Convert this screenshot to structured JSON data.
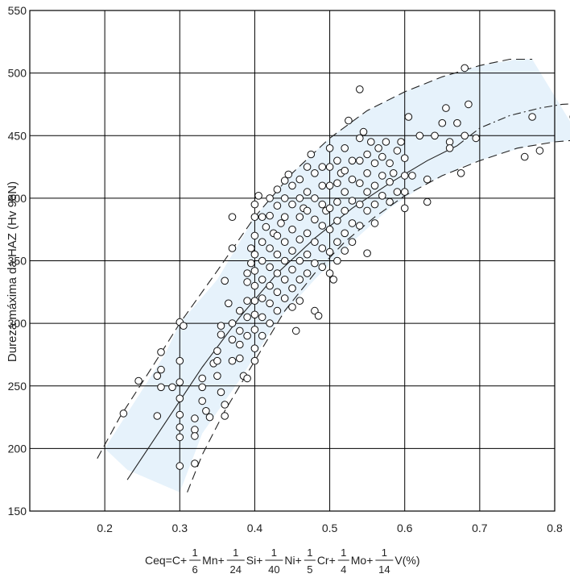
{
  "chart_data": {
    "type": "scatter",
    "ylabel": "Dureza máxima da HAZ (Hv 98N)",
    "xlabel_formula": {
      "prefix": "Ceq=C+",
      "terms": [
        {
          "num": "1",
          "den": "6",
          "elem": "Mn+"
        },
        {
          "num": "1",
          "den": "24",
          "elem": "Si+"
        },
        {
          "num": "1",
          "den": "40",
          "elem": "Ni+"
        },
        {
          "num": "1",
          "den": "5",
          "elem": "Cr+"
        },
        {
          "num": "1",
          "den": "4",
          "elem": "Mo+"
        },
        {
          "num": "1",
          "den": "14",
          "elem": "V(%)"
        }
      ]
    },
    "xlim": [
      0.1,
      0.8
    ],
    "ylim": [
      150,
      550
    ],
    "xticks": [
      0.2,
      0.3,
      0.4,
      0.5,
      0.6,
      0.7,
      0.8
    ],
    "xtick_labels": [
      "0.2",
      "0.3",
      "0.4",
      "0.5",
      "0.6",
      "0.7",
      "0.8"
    ],
    "yticks": [
      150,
      200,
      250,
      300,
      350,
      400,
      450,
      500,
      550
    ],
    "ytick_labels": [
      "150",
      "200",
      "250",
      "300",
      "350",
      "400",
      "450",
      "500",
      "550"
    ],
    "grid": true,
    "colors": {
      "band": "#e6f2fb",
      "line": "#222222",
      "grid": "#000000"
    },
    "band": {
      "upper": [
        [
          0.3,
          300
        ],
        [
          0.35,
          335
        ],
        [
          0.4,
          385
        ],
        [
          0.45,
          420
        ],
        [
          0.5,
          448
        ],
        [
          0.55,
          470
        ],
        [
          0.6,
          485
        ],
        [
          0.65,
          497
        ],
        [
          0.7,
          506
        ],
        [
          0.75,
          511
        ],
        [
          0.77,
          511
        ]
      ],
      "lower": [
        [
          0.33,
          212
        ],
        [
          0.38,
          255
        ],
        [
          0.43,
          302
        ],
        [
          0.48,
          335
        ],
        [
          0.53,
          365
        ],
        [
          0.58,
          392
        ],
        [
          0.63,
          412
        ],
        [
          0.68,
          426
        ],
        [
          0.73,
          436
        ],
        [
          0.78,
          444
        ],
        [
          0.835,
          447
        ]
      ],
      "bottom_left": [
        [
          0.3,
          165
        ],
        [
          0.23,
          183
        ],
        [
          0.2,
          200
        ],
        [
          0.28,
          275
        ],
        [
          0.3,
          300
        ]
      ]
    },
    "envelope_upper": [
      [
        0.19,
        192
      ],
      [
        0.22,
        225
      ],
      [
        0.26,
        262
      ],
      [
        0.3,
        300
      ],
      [
        0.35,
        342
      ],
      [
        0.4,
        385
      ],
      [
        0.45,
        420
      ],
      [
        0.5,
        448
      ],
      [
        0.55,
        470
      ],
      [
        0.6,
        485
      ],
      [
        0.65,
        497
      ],
      [
        0.7,
        506
      ],
      [
        0.74,
        511
      ],
      [
        0.77,
        511
      ]
    ],
    "envelope_lower": [
      [
        0.31,
        165
      ],
      [
        0.33,
        195
      ],
      [
        0.36,
        230
      ],
      [
        0.4,
        270
      ],
      [
        0.44,
        310
      ],
      [
        0.48,
        340
      ],
      [
        0.52,
        365
      ],
      [
        0.56,
        385
      ],
      [
        0.6,
        402
      ],
      [
        0.65,
        418
      ],
      [
        0.7,
        430
      ],
      [
        0.75,
        440
      ],
      [
        0.8,
        445
      ],
      [
        0.84,
        447
      ]
    ],
    "center_solid": [
      [
        0.23,
        175
      ],
      [
        0.28,
        220
      ],
      [
        0.33,
        265
      ],
      [
        0.38,
        305
      ],
      [
        0.43,
        340
      ],
      [
        0.48,
        368
      ],
      [
        0.53,
        392
      ],
      [
        0.58,
        412
      ],
      [
        0.63,
        430
      ],
      [
        0.67,
        442
      ]
    ],
    "center_dashdot": [
      [
        0.67,
        442
      ],
      [
        0.7,
        456
      ],
      [
        0.74,
        466
      ],
      [
        0.78,
        472
      ],
      [
        0.81,
        475
      ],
      [
        0.845,
        476
      ]
    ],
    "points": [
      [
        0.225,
        228
      ],
      [
        0.245,
        254
      ],
      [
        0.27,
        226
      ],
      [
        0.27,
        258
      ],
      [
        0.275,
        263
      ],
      [
        0.275,
        277
      ],
      [
        0.275,
        249
      ],
      [
        0.29,
        249
      ],
      [
        0.3,
        301
      ],
      [
        0.305,
        298
      ],
      [
        0.3,
        270
      ],
      [
        0.3,
        253
      ],
      [
        0.3,
        240
      ],
      [
        0.3,
        227
      ],
      [
        0.3,
        217
      ],
      [
        0.3,
        209
      ],
      [
        0.3,
        186
      ],
      [
        0.32,
        224
      ],
      [
        0.32,
        215
      ],
      [
        0.32,
        210
      ],
      [
        0.32,
        188
      ],
      [
        0.33,
        238
      ],
      [
        0.33,
        249
      ],
      [
        0.33,
        256
      ],
      [
        0.335,
        230
      ],
      [
        0.34,
        225
      ],
      [
        0.345,
        268
      ],
      [
        0.35,
        278
      ],
      [
        0.35,
        270
      ],
      [
        0.35,
        258
      ],
      [
        0.355,
        291
      ],
      [
        0.355,
        298
      ],
      [
        0.355,
        245
      ],
      [
        0.36,
        235
      ],
      [
        0.36,
        226
      ],
      [
        0.365,
        316
      ],
      [
        0.36,
        334
      ],
      [
        0.37,
        360
      ],
      [
        0.37,
        385
      ],
      [
        0.37,
        300
      ],
      [
        0.37,
        287
      ],
      [
        0.37,
        270
      ],
      [
        0.38,
        310
      ],
      [
        0.38,
        294
      ],
      [
        0.38,
        283
      ],
      [
        0.38,
        272
      ],
      [
        0.385,
        258
      ],
      [
        0.39,
        340
      ],
      [
        0.39,
        333
      ],
      [
        0.39,
        318
      ],
      [
        0.39,
        305
      ],
      [
        0.39,
        290
      ],
      [
        0.39,
        256
      ],
      [
        0.395,
        360
      ],
      [
        0.395,
        348
      ],
      [
        0.4,
        395
      ],
      [
        0.4,
        385
      ],
      [
        0.4,
        370
      ],
      [
        0.4,
        355
      ],
      [
        0.4,
        342
      ],
      [
        0.4,
        330
      ],
      [
        0.4,
        318
      ],
      [
        0.4,
        307
      ],
      [
        0.4,
        295
      ],
      [
        0.4,
        280
      ],
      [
        0.4,
        270
      ],
      [
        0.405,
        402
      ],
      [
        0.41,
        385
      ],
      [
        0.41,
        365
      ],
      [
        0.41,
        350
      ],
      [
        0.41,
        335
      ],
      [
        0.41,
        320
      ],
      [
        0.41,
        305
      ],
      [
        0.41,
        290
      ],
      [
        0.415,
        377
      ],
      [
        0.42,
        400
      ],
      [
        0.42,
        386
      ],
      [
        0.42,
        360
      ],
      [
        0.42,
        345
      ],
      [
        0.42,
        330
      ],
      [
        0.42,
        316
      ],
      [
        0.42,
        300
      ],
      [
        0.425,
        372
      ],
      [
        0.43,
        407
      ],
      [
        0.43,
        394
      ],
      [
        0.43,
        370
      ],
      [
        0.43,
        355
      ],
      [
        0.43,
        340
      ],
      [
        0.43,
        325
      ],
      [
        0.43,
        310
      ],
      [
        0.435,
        380
      ],
      [
        0.44,
        414
      ],
      [
        0.44,
        400
      ],
      [
        0.44,
        385
      ],
      [
        0.44,
        365
      ],
      [
        0.44,
        350
      ],
      [
        0.44,
        335
      ],
      [
        0.44,
        320
      ],
      [
        0.445,
        419
      ],
      [
        0.45,
        410
      ],
      [
        0.45,
        395
      ],
      [
        0.45,
        375
      ],
      [
        0.45,
        358
      ],
      [
        0.45,
        343
      ],
      [
        0.45,
        328
      ],
      [
        0.45,
        313
      ],
      [
        0.455,
        294
      ],
      [
        0.46,
        415
      ],
      [
        0.46,
        400
      ],
      [
        0.46,
        385
      ],
      [
        0.46,
        367
      ],
      [
        0.46,
        350
      ],
      [
        0.46,
        335
      ],
      [
        0.46,
        318
      ],
      [
        0.465,
        392
      ],
      [
        0.47,
        425
      ],
      [
        0.47,
        405
      ],
      [
        0.47,
        390
      ],
      [
        0.47,
        372
      ],
      [
        0.47,
        355
      ],
      [
        0.47,
        340
      ],
      [
        0.475,
        435
      ],
      [
        0.48,
        420
      ],
      [
        0.48,
        400
      ],
      [
        0.48,
        383
      ],
      [
        0.48,
        365
      ],
      [
        0.48,
        348
      ],
      [
        0.48,
        310
      ],
      [
        0.485,
        306
      ],
      [
        0.49,
        425
      ],
      [
        0.49,
        410
      ],
      [
        0.49,
        395
      ],
      [
        0.49,
        378
      ],
      [
        0.49,
        360
      ],
      [
        0.49,
        345
      ],
      [
        0.495,
        390
      ],
      [
        0.5,
        440
      ],
      [
        0.5,
        425
      ],
      [
        0.5,
        410
      ],
      [
        0.5,
        392
      ],
      [
        0.5,
        375
      ],
      [
        0.5,
        357
      ],
      [
        0.5,
        340
      ],
      [
        0.505,
        335
      ],
      [
        0.51,
        430
      ],
      [
        0.51,
        412
      ],
      [
        0.51,
        397
      ],
      [
        0.51,
        382
      ],
      [
        0.51,
        365
      ],
      [
        0.51,
        350
      ],
      [
        0.515,
        420
      ],
      [
        0.52,
        440
      ],
      [
        0.52,
        422
      ],
      [
        0.52,
        405
      ],
      [
        0.52,
        390
      ],
      [
        0.52,
        372
      ],
      [
        0.52,
        358
      ],
      [
        0.525,
        462
      ],
      [
        0.53,
        430
      ],
      [
        0.53,
        415
      ],
      [
        0.53,
        398
      ],
      [
        0.53,
        380
      ],
      [
        0.53,
        365
      ],
      [
        0.54,
        487
      ],
      [
        0.54,
        448
      ],
      [
        0.54,
        430
      ],
      [
        0.54,
        412
      ],
      [
        0.54,
        395
      ],
      [
        0.54,
        378
      ],
      [
        0.545,
        453
      ],
      [
        0.55,
        435
      ],
      [
        0.55,
        420
      ],
      [
        0.55,
        405
      ],
      [
        0.55,
        390
      ],
      [
        0.55,
        356
      ],
      [
        0.555,
        445
      ],
      [
        0.56,
        428
      ],
      [
        0.56,
        410
      ],
      [
        0.56,
        395
      ],
      [
        0.56,
        380
      ],
      [
        0.565,
        440
      ],
      [
        0.57,
        433
      ],
      [
        0.57,
        418
      ],
      [
        0.57,
        402
      ],
      [
        0.575,
        445
      ],
      [
        0.58,
        428
      ],
      [
        0.58,
        413
      ],
      [
        0.58,
        397
      ],
      [
        0.585,
        420
      ],
      [
        0.59,
        438
      ],
      [
        0.59,
        405
      ],
      [
        0.595,
        445
      ],
      [
        0.6,
        432
      ],
      [
        0.6,
        418
      ],
      [
        0.6,
        405
      ],
      [
        0.6,
        392
      ],
      [
        0.605,
        465
      ],
      [
        0.61,
        418
      ],
      [
        0.62,
        450
      ],
      [
        0.63,
        415
      ],
      [
        0.63,
        397
      ],
      [
        0.64,
        450
      ],
      [
        0.65,
        460
      ],
      [
        0.655,
        472
      ],
      [
        0.66,
        445
      ],
      [
        0.66,
        440
      ],
      [
        0.67,
        460
      ],
      [
        0.675,
        420
      ],
      [
        0.68,
        450
      ],
      [
        0.68,
        504
      ],
      [
        0.685,
        475
      ],
      [
        0.695,
        448
      ],
      [
        0.76,
        433
      ],
      [
        0.77,
        465
      ],
      [
        0.78,
        438
      ],
      [
        0.825,
        465
      ]
    ]
  }
}
